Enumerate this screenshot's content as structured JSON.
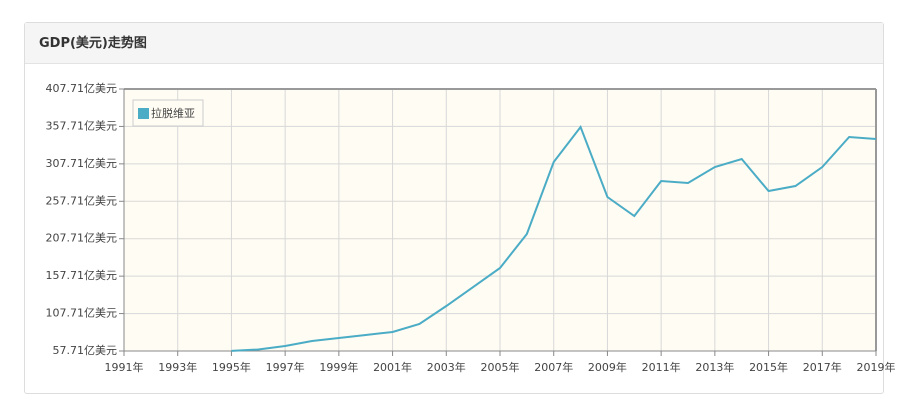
{
  "panel_title": "GDP(美元)走势图",
  "chart_data": {
    "type": "line",
    "x": [
      1991,
      1992,
      1993,
      1994,
      1995,
      1996,
      1997,
      1998,
      1999,
      2000,
      2001,
      2002,
      2003,
      2004,
      2005,
      2006,
      2007,
      2008,
      2009,
      2010,
      2011,
      2012,
      2013,
      2014,
      2015,
      2016,
      2017,
      2018,
      2019
    ],
    "series": [
      {
        "name": "拉脱维亚",
        "color": "#4bacc6",
        "values": [
          null,
          null,
          null,
          null,
          57.9,
          59.7,
          64.4,
          71.1,
          75.1,
          79.1,
          83.1,
          93.8,
          117.8,
          143.2,
          168.6,
          214.0,
          310.2,
          356.9,
          263.4,
          238.0,
          284.8,
          282.1,
          303.5,
          314.2,
          271.4,
          278.1,
          303.5,
          343.6,
          340.9
        ]
      }
    ],
    "xlim": [
      1991,
      2019
    ],
    "xticks": [
      {
        "value": 1991,
        "label": "1991年"
      },
      {
        "value": 1993,
        "label": "1993年"
      },
      {
        "value": 1995,
        "label": "1995年"
      },
      {
        "value": 1997,
        "label": "1997年"
      },
      {
        "value": 1999,
        "label": "1999年"
      },
      {
        "value": 2001,
        "label": "2001年"
      },
      {
        "value": 2003,
        "label": "2003年"
      },
      {
        "value": 2005,
        "label": "2005年"
      },
      {
        "value": 2007,
        "label": "2007年"
      },
      {
        "value": 2009,
        "label": "2009年"
      },
      {
        "value": 2011,
        "label": "2011年"
      },
      {
        "value": 2013,
        "label": "2013年"
      },
      {
        "value": 2015,
        "label": "2015年"
      },
      {
        "value": 2017,
        "label": "2017年"
      },
      {
        "value": 2019,
        "label": "2019年"
      }
    ],
    "ylim": [
      57.71,
      407.71
    ],
    "yticks": [
      {
        "value": 57.71,
        "label": "57.71亿美元"
      },
      {
        "value": 107.71,
        "label": "107.71亿美元"
      },
      {
        "value": 157.71,
        "label": "157.71亿美元"
      },
      {
        "value": 207.71,
        "label": "207.71亿美元"
      },
      {
        "value": 257.71,
        "label": "257.71亿美元"
      },
      {
        "value": 307.71,
        "label": "307.71亿美元"
      },
      {
        "value": 357.71,
        "label": "357.71亿美元"
      },
      {
        "value": 407.71,
        "label": "407.71亿美元"
      }
    ],
    "grid": true,
    "legend": "top-left"
  }
}
